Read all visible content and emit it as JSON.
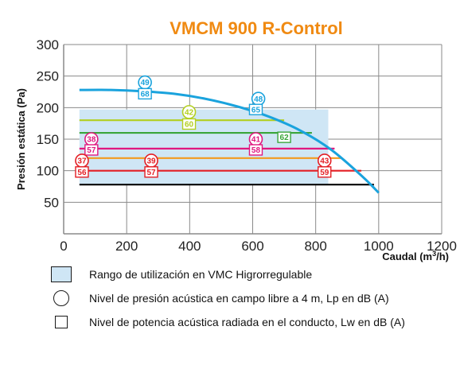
{
  "chart_data": {
    "type": "line",
    "title": "VMCM 900 R-Control",
    "title_color": "#f08a12",
    "xlabel": "Caudal (m",
    "xlabel_sup": "3",
    "xlabel_end": "/h)",
    "ylabel": "Presión estática (Pa)",
    "xlim": [
      0,
      1200
    ],
    "ylim": [
      0,
      300
    ],
    "xticks": [
      0,
      200,
      400,
      600,
      800,
      1000,
      1200
    ],
    "yticks": [
      50,
      100,
      150,
      200,
      250,
      300
    ],
    "grid": true,
    "fan_curve": {
      "color": "#1aa3dd",
      "points": [
        [
          50,
          228
        ],
        [
          150,
          228
        ],
        [
          250,
          226
        ],
        [
          350,
          222
        ],
        [
          450,
          214
        ],
        [
          550,
          202
        ],
        [
          650,
          186
        ],
        [
          750,
          164
        ],
        [
          850,
          133
        ],
        [
          950,
          90
        ],
        [
          1000,
          65
        ]
      ]
    },
    "utilization_range": {
      "x": [
        50,
        840
      ],
      "y": [
        78,
        197
      ],
      "color": "#cfe6f5"
    },
    "lines": [
      {
        "y": 180,
        "x": [
          50,
          700
        ],
        "color": "#b3cf1f"
      },
      {
        "y": 160,
        "x": [
          50,
          788
        ],
        "color": "#3aa53a"
      },
      {
        "y": 135,
        "x": [
          50,
          860
        ],
        "color": "#e0187f"
      },
      {
        "y": 120,
        "x": [
          50,
          880
        ],
        "color": "#f39a1e"
      },
      {
        "y": 100,
        "x": [
          50,
          945
        ],
        "color": "#e41e24"
      },
      {
        "y": 78,
        "x": [
          50,
          985
        ],
        "color": "#111111"
      }
    ],
    "markers": [
      {
        "kind": "circle",
        "label": "49",
        "x": 258,
        "y": 240,
        "color": "#1aa3dd"
      },
      {
        "kind": "square",
        "label": "68",
        "x": 258,
        "y": 222,
        "color": "#1aa3dd"
      },
      {
        "kind": "circle",
        "label": "48",
        "x": 618,
        "y": 214,
        "color": "#1aa3dd"
      },
      {
        "kind": "square",
        "label": "65",
        "x": 610,
        "y": 197,
        "color": "#1aa3dd"
      },
      {
        "kind": "circle",
        "label": "42",
        "x": 398,
        "y": 193,
        "color": "#b3cf1f"
      },
      {
        "kind": "square",
        "label": "60",
        "x": 398,
        "y": 174,
        "color": "#b3cf1f"
      },
      {
        "kind": "square",
        "label": "62",
        "x": 700,
        "y": 153,
        "color": "#3aa53a"
      },
      {
        "kind": "circle",
        "label": "38",
        "x": 88,
        "y": 150,
        "color": "#e0187f"
      },
      {
        "kind": "square",
        "label": "57",
        "x": 88,
        "y": 133,
        "color": "#e0187f"
      },
      {
        "kind": "circle",
        "label": "41",
        "x": 610,
        "y": 150,
        "color": "#e0187f"
      },
      {
        "kind": "square",
        "label": "58",
        "x": 610,
        "y": 133,
        "color": "#e0187f"
      },
      {
        "kind": "circle",
        "label": "37",
        "x": 58,
        "y": 116,
        "color": "#e41e24"
      },
      {
        "kind": "square",
        "label": "56",
        "x": 58,
        "y": 98,
        "color": "#e41e24"
      },
      {
        "kind": "circle",
        "label": "39",
        "x": 278,
        "y": 116,
        "color": "#e41e24"
      },
      {
        "kind": "square",
        "label": "57",
        "x": 278,
        "y": 98,
        "color": "#e41e24"
      },
      {
        "kind": "circle",
        "label": "43",
        "x": 828,
        "y": 116,
        "color": "#e41e24"
      },
      {
        "kind": "square",
        "label": "59",
        "x": 828,
        "y": 98,
        "color": "#e41e24"
      }
    ]
  },
  "legend": {
    "range_label": "Rango de utilización en VMC Higrorregulable",
    "circle_label": "Nivel de presión acústica en campo libre a 4 m, Lp en dB (A)",
    "square_label": "Nivel de potencia acústica radiada en el conducto, Lw en dB (A)"
  }
}
